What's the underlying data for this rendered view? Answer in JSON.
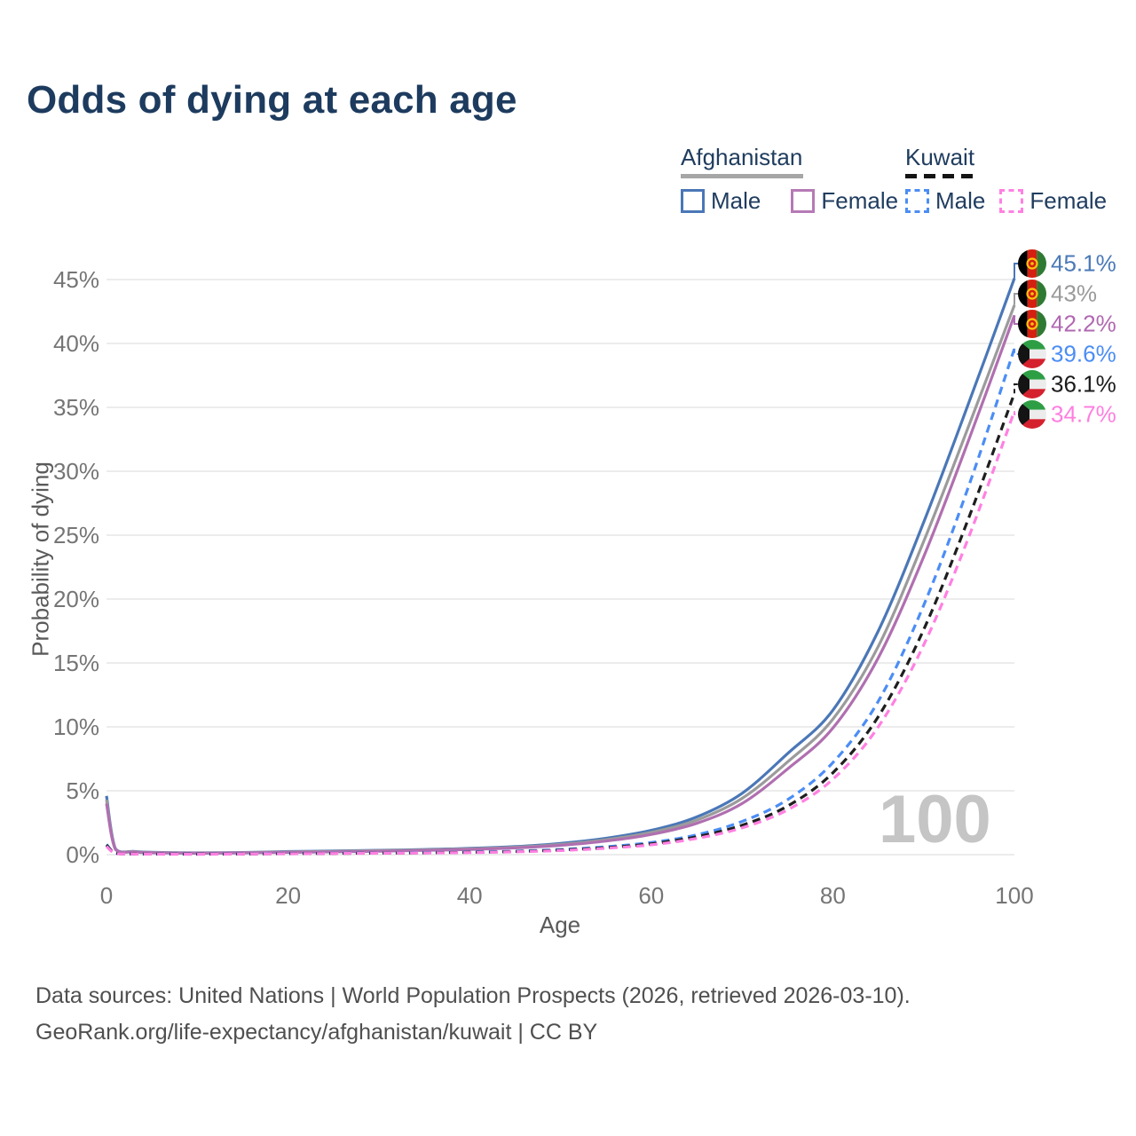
{
  "page": {
    "title": "Odds of dying at each age",
    "watermark": "100",
    "footer_line1": "Data sources: United Nations | World Population Prospects (2026, retrieved 2026-03-10).",
    "footer_line2": "GeoRank.org/life-expectancy/afghanistan/kuwait | CC BY"
  },
  "colors": {
    "title_text": "#1d3b5e",
    "legend_text": "#203d5f",
    "axis_text": "#757575",
    "gridline": "#ececec",
    "watermark": "#c5c5c5"
  },
  "legend": {
    "groups": [
      {
        "label": "Afghanistan",
        "underline": "solid",
        "underline_color": "#a6a6a6",
        "items": [
          {
            "label": "Male",
            "color": "#4a77b7",
            "dashed": false
          },
          {
            "label": "Female",
            "color": "#b57ab5",
            "dashed": false
          }
        ]
      },
      {
        "label": "Kuwait",
        "underline": "dashed",
        "underline_color": "#141414",
        "items": [
          {
            "label": "Male",
            "color": "#4b8df5",
            "dashed": true
          },
          {
            "label": "Female",
            "color": "#ff80e1",
            "dashed": true
          }
        ]
      }
    ]
  },
  "chart_data": {
    "type": "line",
    "title": "Odds of dying at each age",
    "xlabel": "Age",
    "ylabel": "Probability of dying",
    "xlim": [
      0,
      100
    ],
    "ylim_percent": [
      0,
      45
    ],
    "grid": "horizontal",
    "legend_position": "top-right",
    "x_ticks": [
      0,
      20,
      40,
      60,
      80,
      100
    ],
    "y_ticks": [
      "0%",
      "5%",
      "10%",
      "15%",
      "20%",
      "25%",
      "30%",
      "35%",
      "40%",
      "45%"
    ],
    "ages": [
      0,
      1,
      3,
      5,
      10,
      15,
      20,
      25,
      30,
      35,
      40,
      45,
      50,
      55,
      60,
      65,
      70,
      75,
      80,
      85,
      90,
      95,
      100
    ],
    "series": [
      {
        "name": "Afghanistan Male",
        "flag": "afghanistan",
        "style": "solid",
        "color": "#4a77b7",
        "label_color": "#4a79b8",
        "end_label": "45.1%",
        "end_value_percent": 45.1,
        "values": [
          4.6,
          0.45,
          0.25,
          0.18,
          0.14,
          0.17,
          0.24,
          0.29,
          0.34,
          0.4,
          0.49,
          0.63,
          0.88,
          1.28,
          1.9,
          2.95,
          4.8,
          7.9,
          11.3,
          17.5,
          26.0,
          35.4,
          45.1
        ]
      },
      {
        "name": "Afghanistan Both Sexes",
        "flag": "afghanistan",
        "style": "solid",
        "color": "#9b9b9b",
        "label_color": "#9a9a9a",
        "end_label": "43%",
        "end_value_percent": 43,
        "values": [
          4.3,
          0.42,
          0.23,
          0.17,
          0.13,
          0.15,
          0.21,
          0.26,
          0.31,
          0.37,
          0.45,
          0.58,
          0.8,
          1.17,
          1.74,
          2.7,
          4.4,
          7.25,
          10.6,
          16.3,
          24.5,
          33.6,
          43.0
        ]
      },
      {
        "name": "Afghanistan Female",
        "flag": "afghanistan",
        "style": "solid",
        "color": "#b06fb0",
        "label_color": "#b168b1",
        "end_label": "42.2%",
        "end_value_percent": 42.2,
        "values": [
          4.0,
          0.4,
          0.21,
          0.15,
          0.12,
          0.14,
          0.18,
          0.22,
          0.27,
          0.33,
          0.41,
          0.53,
          0.73,
          1.06,
          1.58,
          2.45,
          4.0,
          6.7,
          9.9,
          15.4,
          23.3,
          32.5,
          42.2
        ]
      },
      {
        "name": "Kuwait Male",
        "flag": "kuwait",
        "style": "dashed",
        "color": "#4b8df5",
        "label_color": "#4b8df5",
        "end_label": "39.6%",
        "end_value_percent": 39.6,
        "values": [
          0.8,
          0.12,
          0.06,
          0.05,
          0.04,
          0.06,
          0.09,
          0.11,
          0.13,
          0.16,
          0.2,
          0.27,
          0.4,
          0.62,
          0.95,
          1.55,
          2.6,
          4.3,
          7.2,
          12.0,
          19.5,
          28.9,
          39.6
        ]
      },
      {
        "name": "Kuwait Both Sexes",
        "flag": "kuwait",
        "style": "dashed",
        "color": "#1e1e1e",
        "label_color": "#1b1b1b",
        "end_label": "36.1%",
        "end_value_percent": 36.1,
        "values": [
          0.75,
          0.11,
          0.06,
          0.05,
          0.04,
          0.05,
          0.08,
          0.1,
          0.12,
          0.14,
          0.18,
          0.24,
          0.36,
          0.55,
          0.85,
          1.4,
          2.3,
          3.8,
          6.4,
          10.8,
          17.6,
          26.4,
          36.1
        ]
      },
      {
        "name": "Kuwait Female",
        "flag": "kuwait",
        "style": "dashed",
        "color": "#ff80e1",
        "label_color": "#ff7ee0",
        "end_label": "34.7%",
        "end_value_percent": 34.7,
        "values": [
          0.65,
          0.1,
          0.05,
          0.04,
          0.03,
          0.05,
          0.07,
          0.09,
          0.11,
          0.13,
          0.16,
          0.22,
          0.32,
          0.5,
          0.77,
          1.27,
          2.1,
          3.5,
          5.9,
          10.0,
          16.4,
          24.9,
          34.7
        ]
      }
    ]
  }
}
